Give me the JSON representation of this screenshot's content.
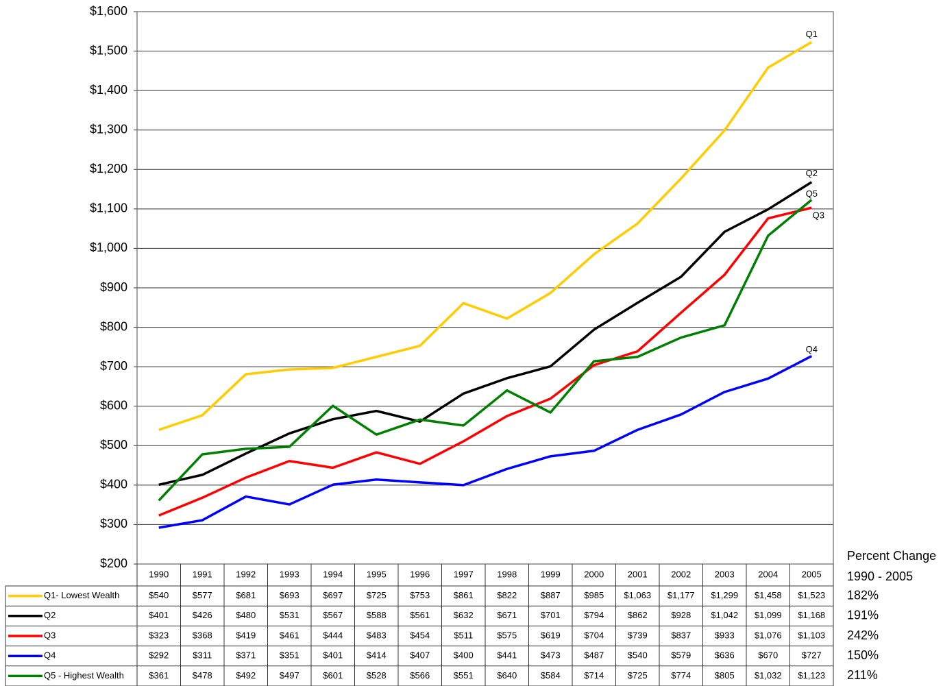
{
  "chart_data": {
    "type": "line",
    "categories": [
      "1990",
      "1991",
      "1992",
      "1993",
      "1994",
      "1995",
      "1996",
      "1997",
      "1998",
      "1999",
      "2000",
      "2001",
      "2002",
      "2003",
      "2004",
      "2005"
    ],
    "ylim": [
      200,
      1600
    ],
    "yticks": [
      {
        "value": 200,
        "label": "$200"
      },
      {
        "value": 300,
        "label": "$300"
      },
      {
        "value": 400,
        "label": "$400"
      },
      {
        "value": 500,
        "label": "$500"
      },
      {
        "value": 600,
        "label": "$600"
      },
      {
        "value": 700,
        "label": "$700"
      },
      {
        "value": 800,
        "label": "$800"
      },
      {
        "value": 900,
        "label": "$900"
      },
      {
        "value": 1000,
        "label": "$1,000"
      },
      {
        "value": 1100,
        "label": "$1,100"
      },
      {
        "value": 1200,
        "label": "$1,200"
      },
      {
        "value": 1300,
        "label": "$1,300"
      },
      {
        "value": 1400,
        "label": "$1,400"
      },
      {
        "value": 1500,
        "label": "$1,500"
      },
      {
        "value": 1600,
        "label": "$1,600"
      }
    ],
    "grid": true,
    "percent_change_title": [
      "Percent Change",
      "1990 - 2005"
    ],
    "series": [
      {
        "name": "Q1- Lowest Wealth",
        "end_label": "Q1",
        "color": "#ffcc00",
        "values": [
          540,
          577,
          681,
          693,
          697,
          725,
          753,
          861,
          822,
          887,
          985,
          1063,
          1177,
          1299,
          1458,
          1523
        ],
        "value_labels": [
          "$540",
          "$577",
          "$681",
          "$693",
          "$697",
          "$725",
          "$753",
          "$861",
          "$822",
          "$887",
          "$985",
          "$1,063",
          "$1,177",
          "$1,299",
          "$1,458",
          "$1,523"
        ],
        "percent_change": {
          "value": 182,
          "label": "182%"
        }
      },
      {
        "name": "Q2",
        "end_label": "Q2",
        "color": "#000000",
        "values": [
          401,
          426,
          480,
          531,
          567,
          588,
          561,
          632,
          671,
          701,
          794,
          862,
          928,
          1042,
          1099,
          1168
        ],
        "value_labels": [
          "$401",
          "$426",
          "$480",
          "$531",
          "$567",
          "$588",
          "$561",
          "$632",
          "$671",
          "$701",
          "$794",
          "$862",
          "$928",
          "$1,042",
          "$1,099",
          "$1,168"
        ],
        "percent_change": {
          "value": 191,
          "label": "191%"
        }
      },
      {
        "name": "Q3",
        "end_label": "Q3",
        "color": "#ff0000",
        "values": [
          323,
          368,
          419,
          461,
          444,
          483,
          454,
          511,
          575,
          619,
          704,
          739,
          837,
          933,
          1076,
          1103
        ],
        "value_labels": [
          "$323",
          "$368",
          "$419",
          "$461",
          "$444",
          "$483",
          "$454",
          "$511",
          "$575",
          "$619",
          "$704",
          "$739",
          "$837",
          "$933",
          "$1,076",
          "$1,103"
        ],
        "percent_change": {
          "value": 242,
          "label": "242%"
        }
      },
      {
        "name": "Q4",
        "end_label": "Q4",
        "color": "#0000ff",
        "values": [
          292,
          311,
          371,
          351,
          401,
          414,
          407,
          400,
          441,
          473,
          487,
          540,
          579,
          636,
          670,
          727
        ],
        "value_labels": [
          "$292",
          "$311",
          "$371",
          "$351",
          "$401",
          "$414",
          "$407",
          "$400",
          "$441",
          "$473",
          "$487",
          "$540",
          "$579",
          "$636",
          "$670",
          "$727"
        ],
        "percent_change": {
          "value": 150,
          "label": "150%"
        }
      },
      {
        "name": "Q5 - Highest Wealth",
        "end_label": "Q5",
        "color": "#008000",
        "values": [
          361,
          478,
          492,
          497,
          601,
          528,
          566,
          551,
          640,
          584,
          714,
          725,
          774,
          805,
          1032,
          1123
        ],
        "value_labels": [
          "$361",
          "$478",
          "$492",
          "$497",
          "$601",
          "$528",
          "$566",
          "$551",
          "$640",
          "$584",
          "$714",
          "$725",
          "$774",
          "$805",
          "$1,032",
          "$1,123"
        ],
        "percent_change": {
          "value": 211,
          "label": "211%"
        }
      }
    ]
  }
}
